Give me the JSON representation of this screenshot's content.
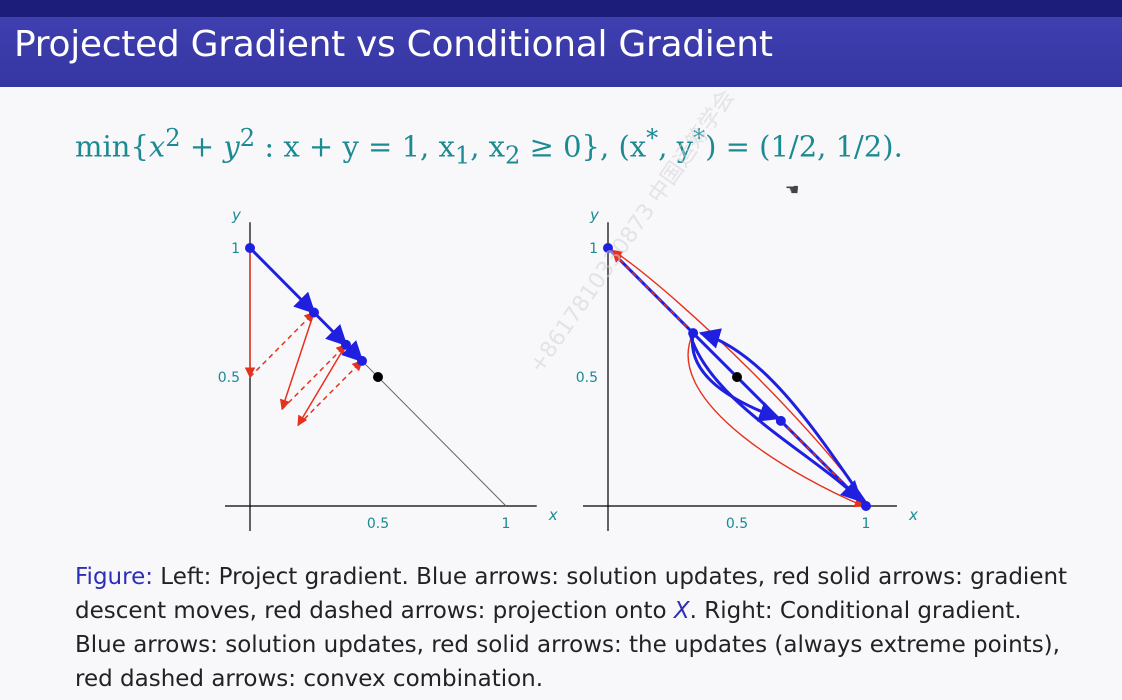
{
  "slide": {
    "title": "Projected Gradient vs Conditional Gradient",
    "formula": {
      "min_open": "min{",
      "x": "x",
      "sq1": "2",
      "plus": " + ",
      "y": "y",
      "sq2": "2",
      "constraint": " : x + y = 1, x",
      "sub1": "1",
      "comma": ", x",
      "sub2": "2",
      "tail": " ≥ 0},  (x",
      "star1": "*",
      "mid": ", y",
      "star2": "*",
      "end": ") = (1/2, 1/2)."
    },
    "caption": {
      "label": "Figure:",
      "part1": " Left: Project gradient. Blue arrows: solution updates, red solid arrows: gradient descent moves, red dashed arrows: projection onto ",
      "set": "X",
      "part2": ". Right: Conditional gradient. Blue arrows: solution updates, red solid arrows: the updates (always extreme points), red dashed arrows: convex combination."
    },
    "watermark": "+8617810330873 中国运筹学会"
  },
  "chart_data": [
    {
      "type": "line",
      "panel": "left",
      "xlabel": "x",
      "ylabel": "y",
      "xticks": [
        "0.5",
        "1"
      ],
      "yticks": [
        "0.5",
        "1"
      ],
      "xlim": [
        0,
        1
      ],
      "ylim": [
        0,
        1
      ],
      "constraint_line": [
        [
          0,
          1
        ],
        [
          1,
          0
        ]
      ],
      "optimum": [
        0.5,
        0.5
      ],
      "iterates": [
        [
          0,
          1
        ],
        [
          0.25,
          0.75
        ],
        [
          0.375,
          0.625
        ],
        [
          0.4375,
          0.5625
        ]
      ],
      "gradient_moves": [
        [
          [
            0,
            1
          ],
          [
            0,
            0.5
          ]
        ],
        [
          [
            0.25,
            0.75
          ],
          [
            0.125,
            0.375
          ]
        ],
        [
          [
            0.375,
            0.625
          ],
          [
            0.1875,
            0.3125
          ]
        ]
      ],
      "projections": [
        [
          [
            0,
            0.5
          ],
          [
            0.25,
            0.75
          ]
        ],
        [
          [
            0.125,
            0.375
          ],
          [
            0.375,
            0.625
          ]
        ],
        [
          [
            0.1875,
            0.3125
          ],
          [
            0.4375,
            0.5625
          ]
        ]
      ],
      "colors": {
        "iterate": "#1f1fe0",
        "gradient": "#e5321e",
        "optimum": "#000000",
        "axis": "#000000"
      }
    },
    {
      "type": "line",
      "panel": "right",
      "xlabel": "x",
      "ylabel": "y",
      "xticks": [
        "0.5",
        "1"
      ],
      "yticks": [
        "0.5",
        "1"
      ],
      "xlim": [
        0,
        1
      ],
      "ylim": [
        0,
        1
      ],
      "constraint_line": [
        [
          0,
          1
        ],
        [
          1,
          0
        ]
      ],
      "optimum": [
        0.5,
        0.5
      ],
      "iterates": [
        [
          0,
          1
        ],
        [
          1,
          0
        ],
        [
          0.33,
          0.67
        ],
        [
          0.67,
          0.33
        ]
      ],
      "colors": {
        "iterate": "#1f1fe0",
        "update": "#e5321e",
        "optimum": "#000000",
        "axis": "#000000"
      }
    }
  ]
}
